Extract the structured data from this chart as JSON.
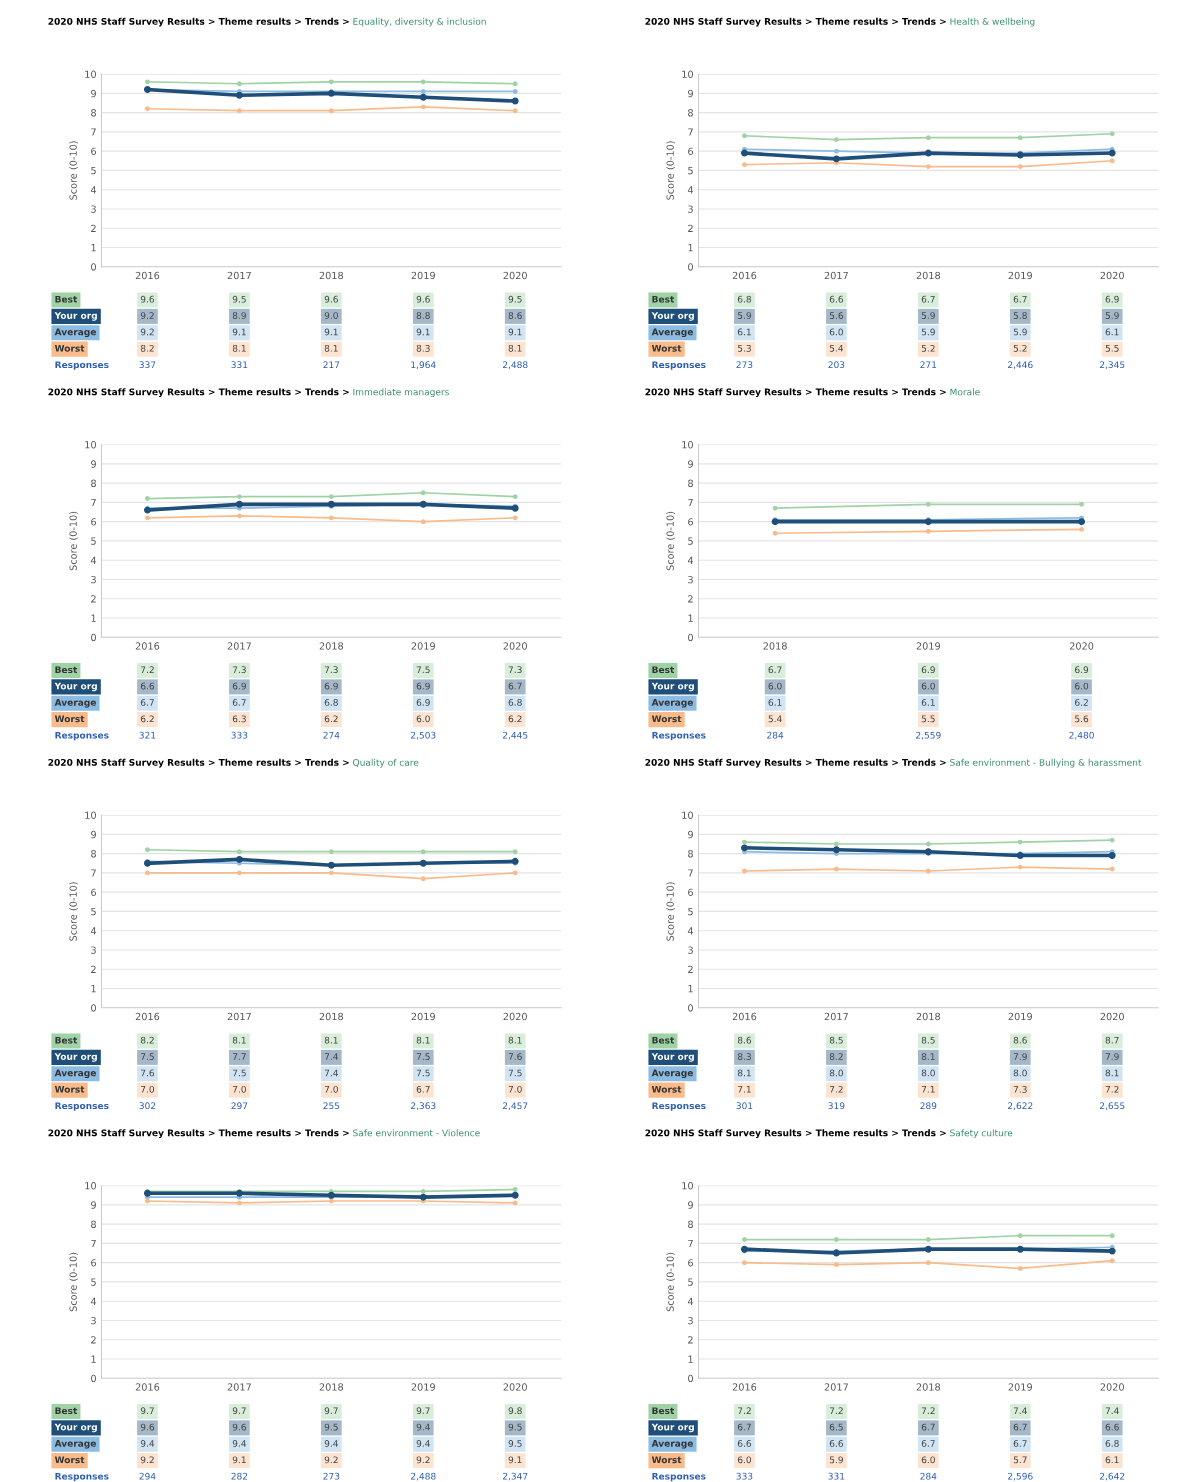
{
  "chart_data": [
    {
      "type": "line",
      "title": "2020 NHS Staff Survey Results > Theme results > Trends >",
      "subtitle": "Equality, diversity & inclusion",
      "ylabel": "Score (0-10)",
      "categories": [
        "2016",
        "2017",
        "2018",
        "2019",
        "2020"
      ],
      "ylim": [
        0,
        10
      ],
      "yticks": [
        0,
        1,
        2,
        3,
        4,
        5,
        6,
        7,
        8,
        9,
        10
      ],
      "grid": "y",
      "marker": "circle",
      "series": [
        {
          "name": "Best",
          "color": "#9fd3a5",
          "values": [
            9.6,
            9.5,
            9.6,
            9.6,
            9.5
          ],
          "value_labels": [
            "9.6",
            "9.5",
            "9.6",
            "9.6",
            "9.5"
          ]
        },
        {
          "name": "Your org",
          "color": "#1f4e79",
          "values": [
            9.2,
            8.9,
            9.0,
            8.8,
            8.6
          ],
          "value_labels": [
            "9.2",
            "8.9",
            "9.0",
            "8.8",
            "8.6"
          ]
        },
        {
          "name": "Average",
          "color": "#8dbce3",
          "values": [
            9.2,
            9.1,
            9.1,
            9.1,
            9.1
          ],
          "value_labels": [
            "9.2",
            "9.1",
            "9.1",
            "9.1",
            "9.1"
          ]
        },
        {
          "name": "Worst",
          "color": "#f8bb8c",
          "values": [
            8.2,
            8.1,
            8.1,
            8.3,
            8.1
          ],
          "value_labels": [
            "8.2",
            "8.1",
            "8.1",
            "8.3",
            "8.1"
          ]
        }
      ],
      "annotations": [
        "Responses",
        "337",
        "331",
        "217",
        "1,964",
        "2,488"
      ]
    },
    {
      "type": "line",
      "title": "2020 NHS Staff Survey Results > Theme results > Trends >",
      "subtitle": "Health & wellbeing",
      "ylabel": "Score (0-10)",
      "categories": [
        "2016",
        "2017",
        "2018",
        "2019",
        "2020"
      ],
      "ylim": [
        0,
        10
      ],
      "yticks": [
        0,
        1,
        2,
        3,
        4,
        5,
        6,
        7,
        8,
        9,
        10
      ],
      "grid": "y",
      "marker": "circle",
      "series": [
        {
          "name": "Best",
          "color": "#9fd3a5",
          "values": [
            6.8,
            6.6,
            6.7,
            6.7,
            6.9
          ],
          "value_labels": [
            "6.8",
            "6.6",
            "6.7",
            "6.7",
            "6.9"
          ]
        },
        {
          "name": "Your org",
          "color": "#1f4e79",
          "values": [
            5.9,
            5.6,
            5.9,
            5.8,
            5.9
          ],
          "value_labels": [
            "5.9",
            "5.6",
            "5.9",
            "5.8",
            "5.9"
          ]
        },
        {
          "name": "Average",
          "color": "#8dbce3",
          "values": [
            6.1,
            6.0,
            5.9,
            5.9,
            6.1
          ],
          "value_labels": [
            "6.1",
            "6.0",
            "5.9",
            "5.9",
            "6.1"
          ]
        },
        {
          "name": "Worst",
          "color": "#f8bb8c",
          "values": [
            5.3,
            5.4,
            5.2,
            5.2,
            5.5
          ],
          "value_labels": [
            "5.3",
            "5.4",
            "5.2",
            "5.2",
            "5.5"
          ]
        }
      ],
      "annotations": [
        "Responses",
        "273",
        "203",
        "271",
        "2,446",
        "2,345"
      ]
    },
    {
      "type": "line",
      "title": "2020 NHS Staff Survey Results > Theme results > Trends >",
      "subtitle": "Immediate managers",
      "ylabel": "Score (0-10)",
      "categories": [
        "2016",
        "2017",
        "2018",
        "2019",
        "2020"
      ],
      "ylim": [
        0,
        10
      ],
      "yticks": [
        0,
        1,
        2,
        3,
        4,
        5,
        6,
        7,
        8,
        9,
        10
      ],
      "grid": "y",
      "marker": "circle",
      "series": [
        {
          "name": "Best",
          "color": "#9fd3a5",
          "values": [
            7.2,
            7.3,
            7.3,
            7.5,
            7.3
          ],
          "value_labels": [
            "7.2",
            "7.3",
            "7.3",
            "7.5",
            "7.3"
          ]
        },
        {
          "name": "Your org",
          "color": "#1f4e79",
          "values": [
            6.6,
            6.9,
            6.9,
            6.9,
            6.7
          ],
          "value_labels": [
            "6.6",
            "6.9",
            "6.9",
            "6.9",
            "6.7"
          ]
        },
        {
          "name": "Average",
          "color": "#8dbce3",
          "values": [
            6.7,
            6.7,
            6.8,
            6.9,
            6.8
          ],
          "value_labels": [
            "6.7",
            "6.7",
            "6.8",
            "6.9",
            "6.8"
          ]
        },
        {
          "name": "Worst",
          "color": "#f8bb8c",
          "values": [
            6.2,
            6.3,
            6.2,
            6.0,
            6.2
          ],
          "value_labels": [
            "6.2",
            "6.3",
            "6.2",
            "6.0",
            "6.2"
          ]
        }
      ],
      "annotations": [
        "Responses",
        "321",
        "333",
        "274",
        "2,503",
        "2,445"
      ]
    },
    {
      "type": "line",
      "title": "2020 NHS Staff Survey Results > Theme results > Trends >",
      "subtitle": "Morale",
      "ylabel": "Score (0-10)",
      "categories": [
        "2018",
        "2019",
        "2020"
      ],
      "ylim": [
        0,
        10
      ],
      "yticks": [
        0,
        1,
        2,
        3,
        4,
        5,
        6,
        7,
        8,
        9,
        10
      ],
      "grid": "y",
      "marker": "circle",
      "series": [
        {
          "name": "Best",
          "color": "#9fd3a5",
          "values": [
            6.7,
            6.9,
            6.9
          ],
          "value_labels": [
            "6.7",
            "6.9",
            "6.9"
          ]
        },
        {
          "name": "Your org",
          "color": "#1f4e79",
          "values": [
            6.0,
            6.0,
            6.0
          ],
          "value_labels": [
            "6.0",
            "6.0",
            "6.0"
          ]
        },
        {
          "name": "Average",
          "color": "#8dbce3",
          "values": [
            6.1,
            6.1,
            6.2
          ],
          "value_labels": [
            "6.1",
            "6.1",
            "6.2"
          ]
        },
        {
          "name": "Worst",
          "color": "#f8bb8c",
          "values": [
            5.4,
            5.5,
            5.6
          ],
          "value_labels": [
            "5.4",
            "5.5",
            "5.6"
          ]
        }
      ],
      "annotations": [
        "Responses",
        "284",
        "2,559",
        "2,480"
      ]
    },
    {
      "type": "line",
      "title": "2020 NHS Staff Survey Results > Theme results > Trends >",
      "subtitle": "Quality of care",
      "ylabel": "Score (0-10)",
      "categories": [
        "2016",
        "2017",
        "2018",
        "2019",
        "2020"
      ],
      "ylim": [
        0,
        10
      ],
      "yticks": [
        0,
        1,
        2,
        3,
        4,
        5,
        6,
        7,
        8,
        9,
        10
      ],
      "grid": "y",
      "marker": "circle",
      "series": [
        {
          "name": "Best",
          "color": "#9fd3a5",
          "values": [
            8.2,
            8.1,
            8.1,
            8.1,
            8.1
          ],
          "value_labels": [
            "8.2",
            "8.1",
            "8.1",
            "8.1",
            "8.1"
          ]
        },
        {
          "name": "Your org",
          "color": "#1f4e79",
          "values": [
            7.5,
            7.7,
            7.4,
            7.5,
            7.6
          ],
          "value_labels": [
            "7.5",
            "7.7",
            "7.4",
            "7.5",
            "7.6"
          ]
        },
        {
          "name": "Average",
          "color": "#8dbce3",
          "values": [
            7.6,
            7.5,
            7.4,
            7.5,
            7.5
          ],
          "value_labels": [
            "7.6",
            "7.5",
            "7.4",
            "7.5",
            "7.5"
          ]
        },
        {
          "name": "Worst",
          "color": "#f8bb8c",
          "values": [
            7.0,
            7.0,
            7.0,
            6.7,
            7.0
          ],
          "value_labels": [
            "7.0",
            "7.0",
            "7.0",
            "6.7",
            "7.0"
          ]
        }
      ],
      "annotations": [
        "Responses",
        "302",
        "297",
        "255",
        "2,363",
        "2,457"
      ]
    },
    {
      "type": "line",
      "title": "2020 NHS Staff Survey Results > Theme results > Trends >",
      "subtitle": "Safe environment - Bullying & harassment",
      "ylabel": "Score (0-10)",
      "categories": [
        "2016",
        "2017",
        "2018",
        "2019",
        "2020"
      ],
      "ylim": [
        0,
        10
      ],
      "yticks": [
        0,
        1,
        2,
        3,
        4,
        5,
        6,
        7,
        8,
        9,
        10
      ],
      "grid": "y",
      "marker": "circle",
      "series": [
        {
          "name": "Best",
          "color": "#9fd3a5",
          "values": [
            8.6,
            8.5,
            8.5,
            8.6,
            8.7
          ],
          "value_labels": [
            "8.6",
            "8.5",
            "8.5",
            "8.6",
            "8.7"
          ]
        },
        {
          "name": "Your org",
          "color": "#1f4e79",
          "values": [
            8.3,
            8.2,
            8.1,
            7.9,
            7.9
          ],
          "value_labels": [
            "8.3",
            "8.2",
            "8.1",
            "7.9",
            "7.9"
          ]
        },
        {
          "name": "Average",
          "color": "#8dbce3",
          "values": [
            8.1,
            8.0,
            8.0,
            8.0,
            8.1
          ],
          "value_labels": [
            "8.1",
            "8.0",
            "8.0",
            "8.0",
            "8.1"
          ]
        },
        {
          "name": "Worst",
          "color": "#f8bb8c",
          "values": [
            7.1,
            7.2,
            7.1,
            7.3,
            7.2
          ],
          "value_labels": [
            "7.1",
            "7.2",
            "7.1",
            "7.3",
            "7.2"
          ]
        }
      ],
      "annotations": [
        "Responses",
        "301",
        "319",
        "289",
        "2,622",
        "2,655"
      ]
    },
    {
      "type": "line",
      "title": "2020 NHS Staff Survey Results > Theme results > Trends >",
      "subtitle": "Safe environment - Violence",
      "ylabel": "Score (0-10)",
      "categories": [
        "2016",
        "2017",
        "2018",
        "2019",
        "2020"
      ],
      "ylim": [
        0,
        10
      ],
      "yticks": [
        0,
        1,
        2,
        3,
        4,
        5,
        6,
        7,
        8,
        9,
        10
      ],
      "grid": "y",
      "marker": "circle",
      "series": [
        {
          "name": "Best",
          "color": "#9fd3a5",
          "values": [
            9.7,
            9.7,
            9.7,
            9.7,
            9.8
          ],
          "value_labels": [
            "9.7",
            "9.7",
            "9.7",
            "9.7",
            "9.8"
          ]
        },
        {
          "name": "Your org",
          "color": "#1f4e79",
          "values": [
            9.6,
            9.6,
            9.5,
            9.4,
            9.5
          ],
          "value_labels": [
            "9.6",
            "9.6",
            "9.5",
            "9.4",
            "9.5"
          ]
        },
        {
          "name": "Average",
          "color": "#8dbce3",
          "values": [
            9.4,
            9.4,
            9.4,
            9.4,
            9.5
          ],
          "value_labels": [
            "9.4",
            "9.4",
            "9.4",
            "9.4",
            "9.5"
          ]
        },
        {
          "name": "Worst",
          "color": "#f8bb8c",
          "values": [
            9.2,
            9.1,
            9.2,
            9.2,
            9.1
          ],
          "value_labels": [
            "9.2",
            "9.1",
            "9.2",
            "9.2",
            "9.1"
          ]
        }
      ],
      "annotations": [
        "Responses",
        "294",
        "282",
        "273",
        "2,488",
        "2,347"
      ]
    },
    {
      "type": "line",
      "title": "2020 NHS Staff Survey Results > Theme results > Trends >",
      "subtitle": "Safety culture",
      "ylabel": "Score (0-10)",
      "categories": [
        "2016",
        "2017",
        "2018",
        "2019",
        "2020"
      ],
      "ylim": [
        0,
        10
      ],
      "yticks": [
        0,
        1,
        2,
        3,
        4,
        5,
        6,
        7,
        8,
        9,
        10
      ],
      "grid": "y",
      "marker": "circle",
      "series": [
        {
          "name": "Best",
          "color": "#9fd3a5",
          "values": [
            7.2,
            7.2,
            7.2,
            7.4,
            7.4
          ],
          "value_labels": [
            "7.2",
            "7.2",
            "7.2",
            "7.4",
            "7.4"
          ]
        },
        {
          "name": "Your org",
          "color": "#1f4e79",
          "values": [
            6.7,
            6.5,
            6.7,
            6.7,
            6.6
          ],
          "value_labels": [
            "6.7",
            "6.5",
            "6.7",
            "6.7",
            "6.6"
          ]
        },
        {
          "name": "Average",
          "color": "#8dbce3",
          "values": [
            6.6,
            6.6,
            6.7,
            6.7,
            6.8
          ],
          "value_labels": [
            "6.6",
            "6.6",
            "6.7",
            "6.7",
            "6.8"
          ]
        },
        {
          "name": "Worst",
          "color": "#f8bb8c",
          "values": [
            6.0,
            5.9,
            6.0,
            5.7,
            6.1
          ],
          "value_labels": [
            "6.0",
            "5.9",
            "6.0",
            "5.7",
            "6.1"
          ]
        }
      ],
      "annotations": [
        "Responses",
        "333",
        "331",
        "284",
        "2,596",
        "2,642"
      ]
    }
  ]
}
